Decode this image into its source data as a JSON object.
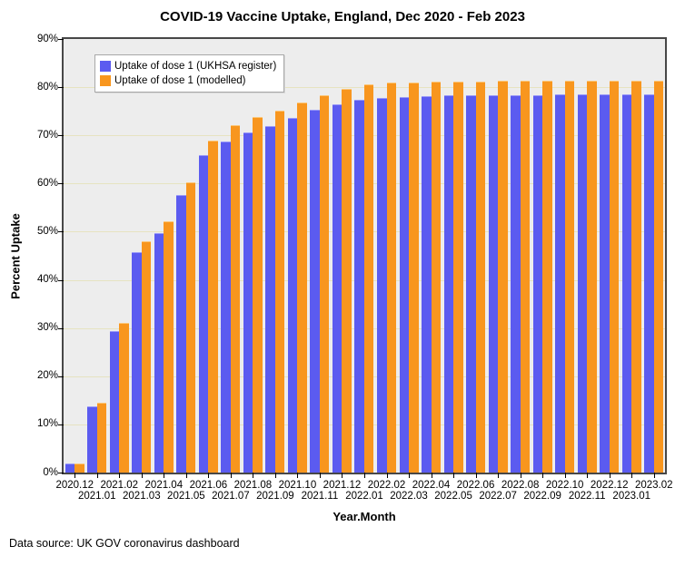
{
  "page": {
    "footer": "Data source: UK GOV coronavirus dashboard"
  },
  "chart_data": {
    "type": "bar",
    "title": "COVID-19 Vaccine Uptake, England, Dec 2020 - Feb 2023",
    "xlabel": "Year.Month",
    "ylabel": "Percent Uptake",
    "ylim": [
      0,
      90
    ],
    "ytick_step": 10,
    "ytick_suffix": "%",
    "grid": true,
    "grid_color": "#e6e3c1",
    "plot_bg": "#ededed",
    "frame_color": "#474747",
    "legend_position": "upper-left-inside",
    "categories": [
      "2020.12",
      "2021.01",
      "2021.02",
      "2021.03",
      "2021.04",
      "2021.05",
      "2021.06",
      "2021.07",
      "2021.08",
      "2021.09",
      "2021.10",
      "2021.11",
      "2021.12",
      "2022.01",
      "2022.02",
      "2022.03",
      "2022.04",
      "2022.05",
      "2022.06",
      "2022.07",
      "2022.08",
      "2022.09",
      "2022.10",
      "2022.11",
      "2022.12",
      "2023.01",
      "2023.02"
    ],
    "series": [
      {
        "name": "Uptake of dose 1 (UKHSA register)",
        "color": "#5b5bf0",
        "edge_color": "#9a9af8",
        "values": [
          1.8,
          13.8,
          29.4,
          45.7,
          49.8,
          57.6,
          65.9,
          68.8,
          70.7,
          72.0,
          73.6,
          75.3,
          76.5,
          77.4,
          77.8,
          78.0,
          78.2,
          78.3,
          78.3,
          78.4,
          78.4,
          78.4,
          78.5,
          78.5,
          78.5,
          78.5,
          78.5
        ]
      },
      {
        "name": "Uptake of dose 1 (modelled)",
        "color": "#f8961e",
        "edge_color": "#fbc678",
        "values": [
          1.9,
          14.5,
          31.0,
          48.0,
          52.1,
          60.2,
          69.0,
          72.1,
          73.9,
          75.2,
          76.9,
          78.3,
          79.6,
          80.5,
          80.9,
          81.0,
          81.2,
          81.2,
          81.2,
          81.3,
          81.3,
          81.3,
          81.3,
          81.3,
          81.3,
          81.3,
          81.3
        ]
      }
    ]
  }
}
